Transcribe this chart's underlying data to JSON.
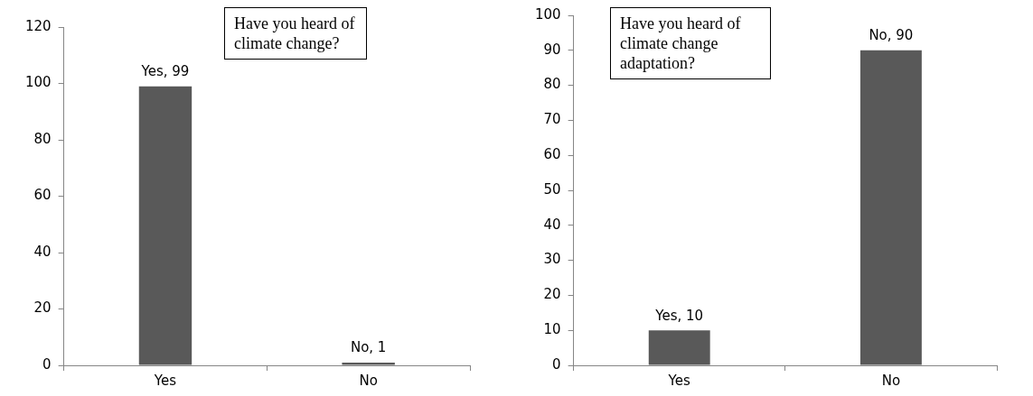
{
  "chart_data": [
    {
      "type": "bar",
      "categories": [
        "Yes",
        "No"
      ],
      "values": [
        99,
        1
      ],
      "color": "#595959",
      "value_labels": [
        "Yes, 99",
        "No, 1"
      ],
      "ylim": [
        0,
        120
      ],
      "yticks": [
        0,
        20,
        40,
        60,
        80,
        100,
        120
      ],
      "annotations": [
        "Have you heard of climate change?"
      ]
    },
    {
      "type": "bar",
      "categories": [
        "Yes",
        "No"
      ],
      "values": [
        10,
        90
      ],
      "color": "#595959",
      "value_labels": [
        "Yes, 10",
        "No, 90"
      ],
      "ylim": [
        0,
        100
      ],
      "yticks": [
        0,
        10,
        20,
        30,
        40,
        50,
        60,
        70,
        80,
        90,
        100
      ],
      "annotations": [
        "Have you heard of climate change adaptation?"
      ]
    }
  ]
}
